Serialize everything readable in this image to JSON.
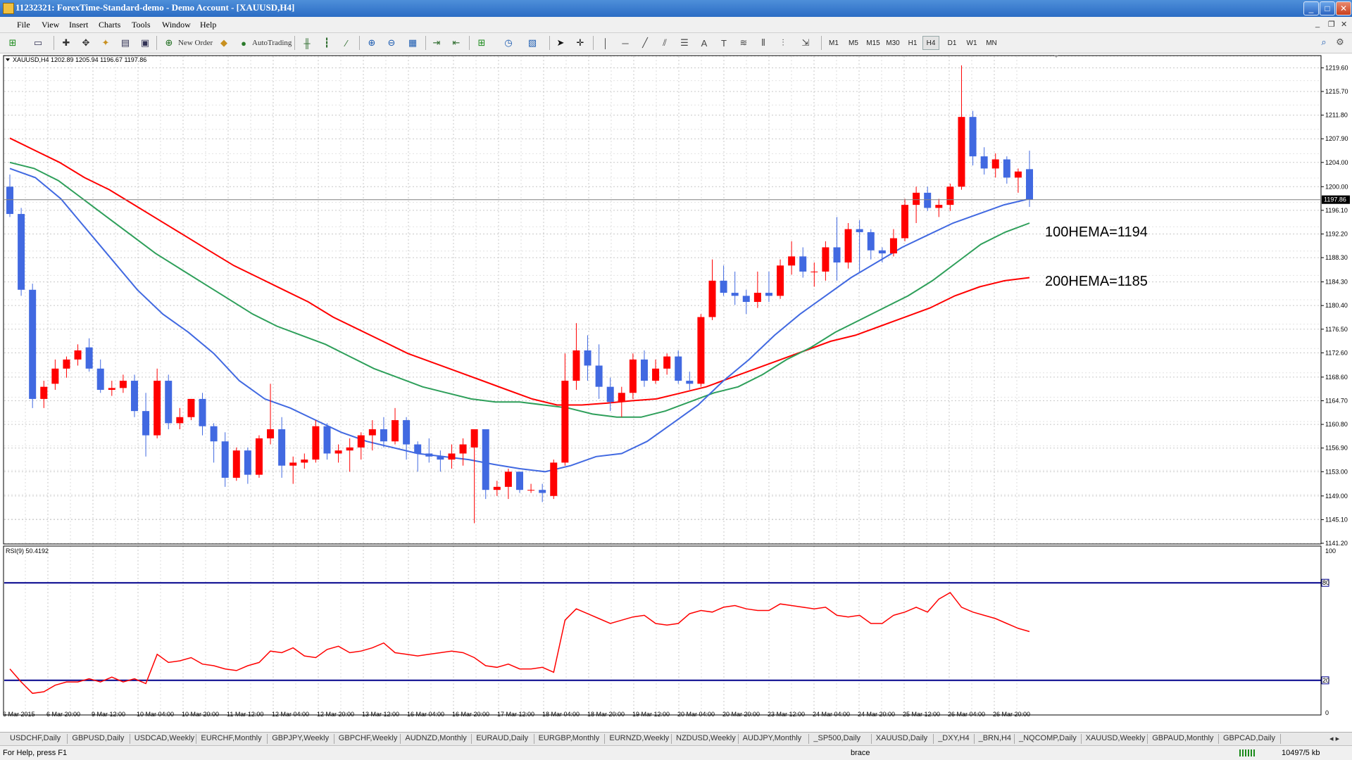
{
  "window": {
    "title": "11232321: ForexTime-Standard-demo - Demo Account - [XAUUSD,H4]",
    "buttons": [
      "_",
      "□",
      "✕"
    ]
  },
  "menu": [
    "File",
    "View",
    "Insert",
    "Charts",
    "Tools",
    "Window",
    "Help"
  ],
  "toolbar": {
    "new_order": "New Order",
    "autotrading": "AutoTrading",
    "timeframes": [
      "M1",
      "M5",
      "M15",
      "M30",
      "H1",
      "H4",
      "D1",
      "W1",
      "MN"
    ],
    "active_timeframe": "H4",
    "search_placeholder": ""
  },
  "chart": {
    "info": "XAUUSD,H4  1202.89 1205.94 1196.67 1197.86",
    "current_price": "1197.86",
    "price_labels": [
      "1219.60",
      "1215.70",
      "1211.80",
      "1207.90",
      "1204.00",
      "1200.00",
      "1196.10",
      "1192.20",
      "1188.30",
      "1184.30",
      "1180.40",
      "1176.50",
      "1172.60",
      "1168.60",
      "1164.70",
      "1160.80",
      "1156.90",
      "1153.00",
      "1149.00",
      "1145.10",
      "1141.20"
    ],
    "time_labels": [
      "6 Mar 2015",
      "6 Mar 20:00",
      "9 Mar 12:00",
      "10 Mar 04:00",
      "10 Mar 20:00",
      "11 Mar 12:00",
      "12 Mar 04:00",
      "12 Mar 20:00",
      "13 Mar 12:00",
      "16 Mar 04:00",
      "16 Mar 20:00",
      "17 Mar 12:00",
      "18 Mar 04:00",
      "18 Mar 20:00",
      "19 Mar 12:00",
      "20 Mar 04:00",
      "20 Mar 20:00",
      "23 Mar 12:00",
      "24 Mar 04:00",
      "24 Mar 20:00",
      "25 Mar 12:00",
      "26 Mar 04:00",
      "26 Mar 20:00"
    ],
    "annotations": [
      "100HEMA=1194",
      "200HEMA=1185"
    ]
  },
  "rsi": {
    "label": "RSI(9) 50.4192",
    "scale_labels": [
      "100",
      "80",
      "20",
      "0"
    ],
    "levels": [
      80,
      20
    ]
  },
  "colors": {
    "bull": "#ff0000",
    "bear": "#4169e1",
    "ema_fast": "#4169e1",
    "ema_mid": "#2e9f5a",
    "ema_slow": "#ff0000",
    "rsi_line": "#ff0000",
    "rsi_level": "#00008b"
  },
  "chart_data": {
    "type": "candlestick",
    "symbol": "XAUUSD",
    "timeframe": "H4",
    "ylim": [
      1141.2,
      1221.5
    ],
    "candles": [
      [
        1200.0,
        1202.0,
        1195.0,
        1195.5
      ],
      [
        1195.5,
        1196.5,
        1182.0,
        1183.0
      ],
      [
        1183.0,
        1184.0,
        1163.5,
        1165.0
      ],
      [
        1165.0,
        1168.0,
        1163.5,
        1167.0
      ],
      [
        1167.5,
        1171.5,
        1166.5,
        1170.0
      ],
      [
        1170.0,
        1172.0,
        1168.5,
        1171.5
      ],
      [
        1171.5,
        1174.0,
        1170.5,
        1173.0
      ],
      [
        1173.5,
        1175.0,
        1169.5,
        1170.0
      ],
      [
        1170.0,
        1171.5,
        1166.0,
        1166.5
      ],
      [
        1166.5,
        1168.0,
        1165.5,
        1166.8
      ],
      [
        1166.8,
        1169.0,
        1166.0,
        1168.0
      ],
      [
        1168.0,
        1169.0,
        1162.0,
        1163.0
      ],
      [
        1163.0,
        1166.0,
        1155.5,
        1159.0
      ],
      [
        1159.0,
        1170.0,
        1158.5,
        1168.0
      ],
      [
        1168.0,
        1169.0,
        1160.0,
        1161.0
      ],
      [
        1161.0,
        1163.5,
        1160.0,
        1162.0
      ],
      [
        1162.0,
        1165.0,
        1161.5,
        1165.0
      ],
      [
        1165.0,
        1166.0,
        1159.0,
        1160.5
      ],
      [
        1160.5,
        1161.0,
        1154.5,
        1158.0
      ],
      [
        1158.0,
        1159.5,
        1150.5,
        1152.0
      ],
      [
        1152.0,
        1157.0,
        1151.5,
        1156.5
      ],
      [
        1156.5,
        1157.0,
        1151.0,
        1152.5
      ],
      [
        1152.5,
        1159.0,
        1152.0,
        1158.5
      ],
      [
        1158.5,
        1167.5,
        1157.5,
        1160.0
      ],
      [
        1160.0,
        1162.0,
        1152.0,
        1154.0
      ],
      [
        1154.0,
        1155.5,
        1151.0,
        1154.5
      ],
      [
        1154.5,
        1156.0,
        1153.5,
        1155.0
      ],
      [
        1155.0,
        1161.5,
        1154.5,
        1160.5
      ],
      [
        1160.5,
        1161.0,
        1155.0,
        1156.0
      ],
      [
        1156.0,
        1157.5,
        1154.5,
        1156.5
      ],
      [
        1156.5,
        1158.5,
        1153.0,
        1157.0
      ],
      [
        1157.0,
        1159.5,
        1155.0,
        1159.0
      ],
      [
        1159.0,
        1161.5,
        1156.5,
        1160.0
      ],
      [
        1160.0,
        1162.0,
        1157.0,
        1158.0
      ],
      [
        1158.0,
        1163.5,
        1157.5,
        1161.5
      ],
      [
        1161.5,
        1162.0,
        1155.0,
        1157.5
      ],
      [
        1157.5,
        1158.0,
        1153.0,
        1156.0
      ],
      [
        1156.0,
        1158.5,
        1154.5,
        1155.5
      ],
      [
        1155.5,
        1156.5,
        1153.0,
        1155.0
      ],
      [
        1155.0,
        1157.5,
        1153.5,
        1156.0
      ],
      [
        1156.0,
        1158.5,
        1154.0,
        1157.5
      ],
      [
        1157.0,
        1160.0,
        1144.5,
        1160.0
      ],
      [
        1160.0,
        1159.5,
        1148.5,
        1150.0
      ],
      [
        1150.0,
        1151.5,
        1149.0,
        1150.5
      ],
      [
        1150.5,
        1153.5,
        1148.5,
        1153.0
      ],
      [
        1153.0,
        1153.0,
        1149.5,
        1150.0
      ],
      [
        1150.0,
        1151.0,
        1149.5,
        1150.0
      ],
      [
        1150.0,
        1151.0,
        1148.0,
        1149.5
      ],
      [
        1149.0,
        1155.0,
        1148.5,
        1154.5
      ],
      [
        1154.5,
        1172.5,
        1154.0,
        1168.0
      ],
      [
        1168.0,
        1177.5,
        1166.5,
        1173.0
      ],
      [
        1173.0,
        1175.5,
        1168.0,
        1170.5
      ],
      [
        1170.5,
        1174.0,
        1165.0,
        1167.0
      ],
      [
        1167.0,
        1168.5,
        1163.0,
        1164.5
      ],
      [
        1164.5,
        1167.0,
        1162.0,
        1166.0
      ],
      [
        1166.0,
        1172.5,
        1165.0,
        1171.5
      ],
      [
        1171.5,
        1173.0,
        1167.0,
        1168.0
      ],
      [
        1168.0,
        1171.5,
        1167.5,
        1170.0
      ],
      [
        1170.0,
        1172.5,
        1169.0,
        1172.0
      ],
      [
        1172.0,
        1173.0,
        1167.5,
        1168.0
      ],
      [
        1168.0,
        1169.5,
        1166.5,
        1167.5
      ],
      [
        1167.5,
        1179.0,
        1167.0,
        1178.5
      ],
      [
        1178.5,
        1188.0,
        1178.0,
        1184.5
      ],
      [
        1184.5,
        1187.0,
        1182.0,
        1182.5
      ],
      [
        1182.5,
        1186.0,
        1180.5,
        1182.0
      ],
      [
        1182.0,
        1183.0,
        1179.0,
        1181.0
      ],
      [
        1181.0,
        1186.0,
        1180.0,
        1182.5
      ],
      [
        1182.5,
        1186.0,
        1181.0,
        1182.0
      ],
      [
        1182.0,
        1188.0,
        1181.5,
        1187.0
      ],
      [
        1187.0,
        1191.0,
        1185.5,
        1188.5
      ],
      [
        1188.5,
        1190.0,
        1185.0,
        1186.0
      ],
      [
        1186.0,
        1187.5,
        1183.5,
        1186.0
      ],
      [
        1186.0,
        1191.0,
        1184.5,
        1190.0
      ],
      [
        1190.0,
        1195.0,
        1184.5,
        1187.5
      ],
      [
        1187.5,
        1194.0,
        1186.5,
        1193.0
      ],
      [
        1193.0,
        1194.5,
        1186.0,
        1192.5
      ],
      [
        1192.5,
        1193.0,
        1188.0,
        1189.5
      ],
      [
        1189.5,
        1190.0,
        1187.5,
        1189.0
      ],
      [
        1189.0,
        1193.0,
        1188.5,
        1191.5
      ],
      [
        1191.5,
        1198.0,
        1191.0,
        1197.0
      ],
      [
        1197.0,
        1200.0,
        1194.0,
        1199.0
      ],
      [
        1199.0,
        1200.0,
        1196.0,
        1196.5
      ],
      [
        1196.5,
        1198.0,
        1195.0,
        1197.0
      ],
      [
        1197.0,
        1200.5,
        1196.0,
        1200.0
      ],
      [
        1200.0,
        1220.0,
        1199.5,
        1211.5
      ],
      [
        1211.5,
        1212.5,
        1203.5,
        1205.0
      ],
      [
        1205.0,
        1206.5,
        1202.0,
        1203.0
      ],
      [
        1203.0,
        1205.5,
        1201.5,
        1204.5
      ],
      [
        1204.5,
        1205.0,
        1200.5,
        1201.5
      ],
      [
        1201.5,
        1203.0,
        1199.0,
        1202.5
      ],
      [
        1202.89,
        1205.94,
        1196.67,
        1197.86
      ]
    ],
    "ema_fast": [
      1203,
      1201.5,
      1198,
      1193,
      1188,
      1183,
      1179,
      1176,
      1172.5,
      1168,
      1165,
      1163.5,
      1161.5,
      1159.5,
      1158,
      1157,
      1156,
      1155.5,
      1155,
      1154.2,
      1153.5,
      1153,
      1154,
      1155.5,
      1156,
      1158,
      1161,
      1164,
      1168,
      1171.5,
      1175.5,
      1179,
      1182,
      1185,
      1187.5,
      1190,
      1192,
      1194,
      1195.5,
      1197,
      1198
    ],
    "ema_mid": [
      1204,
      1203,
      1201,
      1198,
      1195,
      1192,
      1189,
      1186.5,
      1184,
      1181.5,
      1179,
      1177,
      1175.5,
      1174,
      1172,
      1170,
      1168.5,
      1167,
      1166,
      1165,
      1164.5,
      1164.5,
      1164,
      1163.5,
      1162.5,
      1162,
      1162,
      1163,
      1164.5,
      1166,
      1167,
      1169,
      1171.5,
      1173.5,
      1176,
      1178,
      1180,
      1182,
      1184.5,
      1187.5,
      1190.5,
      1192.5,
      1194
    ],
    "ema_slow": [
      1208,
      1206,
      1204,
      1201.5,
      1199.5,
      1197,
      1194.5,
      1192,
      1189.5,
      1187,
      1185,
      1183,
      1181,
      1178.5,
      1176.5,
      1174.5,
      1172.5,
      1171,
      1169.5,
      1168,
      1166.5,
      1165,
      1164,
      1164,
      1164.3,
      1164.7,
      1165,
      1166,
      1167,
      1168.5,
      1170,
      1171.5,
      1173,
      1174.5,
      1175.5,
      1177,
      1178.5,
      1180,
      1182,
      1183.5,
      1184.5,
      1185
    ],
    "rsi": [
      27,
      19,
      12,
      13,
      17,
      19,
      19,
      21,
      19,
      22,
      19,
      21,
      18,
      36,
      31,
      32,
      34,
      30,
      29,
      27,
      26,
      29,
      31,
      38,
      37,
      40,
      35,
      34,
      39,
      41,
      37,
      38,
      40,
      43,
      37,
      36,
      35,
      36,
      37,
      38,
      37,
      34,
      29,
      28,
      30,
      27,
      27,
      28,
      25,
      57,
      64,
      61,
      58,
      55,
      57,
      59,
      60,
      55,
      54,
      55,
      61,
      63,
      62,
      65,
      66,
      64,
      63,
      63,
      67,
      66,
      65,
      64,
      65,
      60,
      59,
      60,
      55,
      55,
      60,
      62,
      65,
      62,
      70,
      74,
      65,
      62,
      60,
      58,
      55,
      52,
      50
    ]
  }
}
